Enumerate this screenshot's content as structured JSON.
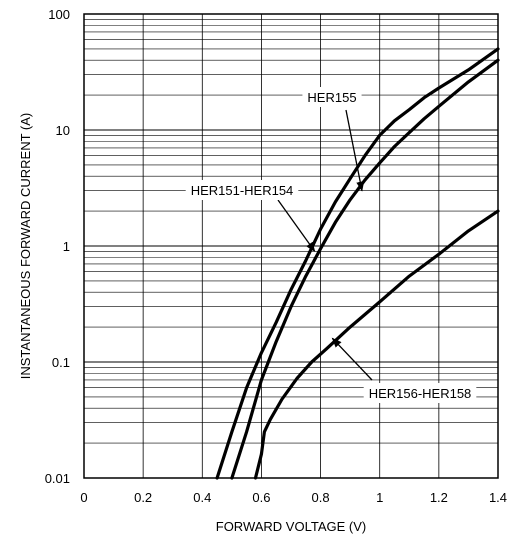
{
  "chart_data": {
    "type": "line",
    "title": "",
    "xlabel": "FORWARD VOLTAGE (V)",
    "ylabel": "INSTANTANEOUS FORWARD CURRENT (A)",
    "xlim": [
      0,
      1.4
    ],
    "ylim": [
      0.01,
      100
    ],
    "yscale": "log",
    "grid": true,
    "x_ticks": [
      0,
      0.2,
      0.4,
      0.6,
      0.8,
      1.0,
      1.2,
      1.4
    ],
    "x_tick_labels": [
      "0",
      "0.2",
      "0.4",
      "0.6",
      "0.8",
      "1",
      "1.2",
      "1.4"
    ],
    "y_ticks": [
      0.01,
      0.1,
      1,
      10,
      100
    ],
    "y_tick_labels": [
      "0.01",
      "0.1",
      "1",
      "10",
      "100"
    ],
    "series": [
      {
        "name": "HER151-HER154",
        "points": [
          [
            0.45,
            0.01
          ],
          [
            0.5,
            0.025
          ],
          [
            0.55,
            0.06
          ],
          [
            0.6,
            0.12
          ],
          [
            0.65,
            0.22
          ],
          [
            0.7,
            0.42
          ],
          [
            0.75,
            0.75
          ],
          [
            0.8,
            1.4
          ],
          [
            0.85,
            2.4
          ],
          [
            0.9,
            3.8
          ],
          [
            0.95,
            6.0
          ],
          [
            1.0,
            9.0
          ],
          [
            1.05,
            12
          ],
          [
            1.1,
            15
          ],
          [
            1.15,
            19
          ],
          [
            1.2,
            23
          ],
          [
            1.3,
            33
          ],
          [
            1.4,
            50
          ]
        ]
      },
      {
        "name": "HER155",
        "points": [
          [
            0.5,
            0.01
          ],
          [
            0.55,
            0.025
          ],
          [
            0.6,
            0.07
          ],
          [
            0.65,
            0.15
          ],
          [
            0.7,
            0.3
          ],
          [
            0.75,
            0.55
          ],
          [
            0.8,
            0.95
          ],
          [
            0.85,
            1.6
          ],
          [
            0.9,
            2.5
          ],
          [
            0.95,
            3.7
          ],
          [
            1.0,
            5.2
          ],
          [
            1.05,
            7.2
          ],
          [
            1.1,
            9.5
          ],
          [
            1.15,
            12.5
          ],
          [
            1.2,
            16
          ],
          [
            1.3,
            26
          ],
          [
            1.4,
            40
          ]
        ]
      },
      {
        "name": "HER156-HER158",
        "points": [
          [
            0.58,
            0.01
          ],
          [
            0.6,
            0.016
          ],
          [
            0.61,
            0.025
          ],
          [
            0.63,
            0.032
          ],
          [
            0.67,
            0.048
          ],
          [
            0.72,
            0.072
          ],
          [
            0.77,
            0.1
          ],
          [
            0.82,
            0.13
          ],
          [
            0.9,
            0.2
          ],
          [
            1.0,
            0.33
          ],
          [
            1.1,
            0.55
          ],
          [
            1.2,
            0.85
          ],
          [
            1.3,
            1.35
          ],
          [
            1.4,
            2.0
          ]
        ]
      }
    ],
    "annotations": [
      {
        "text": "HER155",
        "arrow_to": [
          0.94,
          3.0
        ]
      },
      {
        "text": "HER151-HER154",
        "arrow_to": [
          0.78,
          0.9
        ]
      },
      {
        "text": "HER156-HER158",
        "arrow_to": [
          0.84,
          0.16
        ]
      }
    ]
  }
}
